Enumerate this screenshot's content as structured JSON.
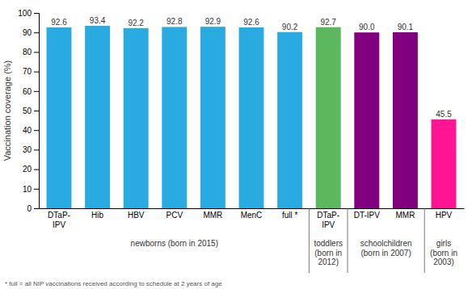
{
  "chart_data": {
    "type": "bar",
    "categories": [
      "DTaP-\nIPV",
      "Hib",
      "HBV",
      "PCV",
      "MMR",
      "MenC",
      "full *",
      "DTaP-\nIPV",
      "DT-IPV",
      "MMR",
      "HPV"
    ],
    "values": [
      92.6,
      93.4,
      92.2,
      92.8,
      92.9,
      92.6,
      90.2,
      92.7,
      90.0,
      90.1,
      45.5
    ],
    "value_labels": [
      "92.6",
      "93.4",
      "92.2",
      "92.8",
      "92.9",
      "92.6",
      "90.2",
      "92.7",
      "90.0",
      "90.1",
      "45.5"
    ],
    "colors": [
      "#29ABE2",
      "#29ABE2",
      "#29ABE2",
      "#29ABE2",
      "#29ABE2",
      "#29ABE2",
      "#29ABE2",
      "#5CB85C",
      "#800080",
      "#800080",
      "#FF1493"
    ],
    "ylabel": "Vaccination coverage (%)",
    "ylim": [
      0,
      100
    ],
    "yticks": [
      0,
      10,
      20,
      30,
      40,
      50,
      60,
      70,
      80,
      90,
      100
    ],
    "grid": false,
    "data_labels": true,
    "annotations": [
      "newborns (born in 2015)",
      "toddlers\n(born in\n2012)",
      "schoolchildren\n(born in 2007)",
      "girls\n(born in\n2003)"
    ],
    "footnote": "* full = all NIP vaccinations received according to schedule at 2 years of age"
  }
}
